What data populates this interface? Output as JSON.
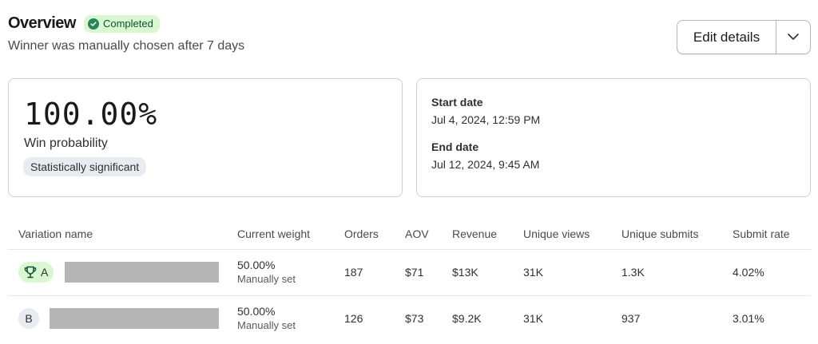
{
  "overview": {
    "title": "Overview",
    "status_badge": "Completed",
    "subtitle": "Winner was manually chosen after 7 days"
  },
  "actions": {
    "edit_label": "Edit details",
    "more_icon": "chevron-down-icon"
  },
  "win_card": {
    "value": "100.00%",
    "label": "Win probability",
    "badge": "Statistically significant"
  },
  "dates": {
    "start_label": "Start date",
    "start_value": "Jul 4, 2024, 12:59 PM",
    "end_label": "End date",
    "end_value": "Jul 12, 2024, 9:45 AM"
  },
  "table": {
    "headers": [
      "Variation name",
      "Current weight",
      "Orders",
      "AOV",
      "Revenue",
      "Unique views",
      "Unique submits",
      "Submit rate"
    ],
    "rows": [
      {
        "variation": "A",
        "winner": true,
        "weight": "50.00%",
        "weight_note": "Manually set",
        "orders": "187",
        "aov": "$71",
        "revenue": "$13K",
        "unique_views": "31K",
        "unique_submits": "1.3K",
        "submit_rate": "4.02%"
      },
      {
        "variation": "B",
        "winner": false,
        "weight": "50.00%",
        "weight_note": "Manually set",
        "orders": "126",
        "aov": "$73",
        "revenue": "$9.2K",
        "unique_views": "31K",
        "unique_submits": "937",
        "submit_rate": "3.01%"
      }
    ]
  },
  "colors": {
    "success_bg": "#d9f7d0",
    "success_icon": "#29845a",
    "neutral_badge_bg": "#e8ecf0",
    "redaction": "#b5b5b5"
  }
}
